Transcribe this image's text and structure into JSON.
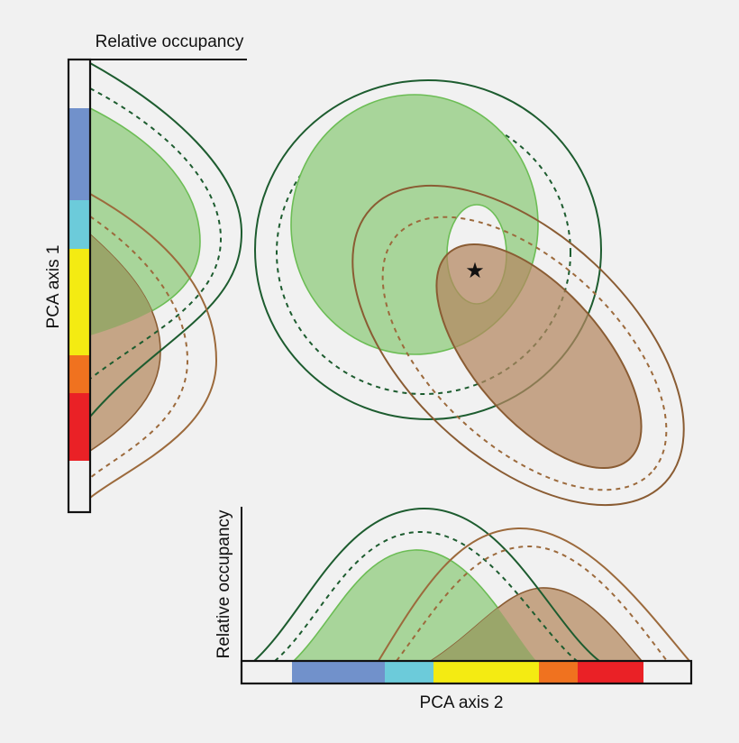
{
  "labels": {
    "top_occupancy": "Relative occupancy",
    "left_axis": "PCA axis 1",
    "bottom_occupancy": "Relative occupancy",
    "bottom_axis": "PCA axis 2"
  },
  "colors": {
    "background": "#f1f1f1",
    "green_fill": "#a8d59a",
    "green_edge": "#6cbd55",
    "green_line": "#1d5c2f",
    "brown_fill": "#c5a586",
    "brown_edge": "#8a5c33",
    "brown_line": "#9c6a3c",
    "overlap_fill": "#9aa66a",
    "star": "#111111"
  },
  "color_bar": [
    {
      "name": "blue",
      "color": "#7191cb"
    },
    {
      "name": "cyan",
      "color": "#6ccbda"
    },
    {
      "name": "yellow",
      "color": "#f4eb12"
    },
    {
      "name": "orange",
      "color": "#f0721f"
    },
    {
      "name": "red",
      "color": "#ea2126"
    }
  ],
  "marker": "star-icon"
}
